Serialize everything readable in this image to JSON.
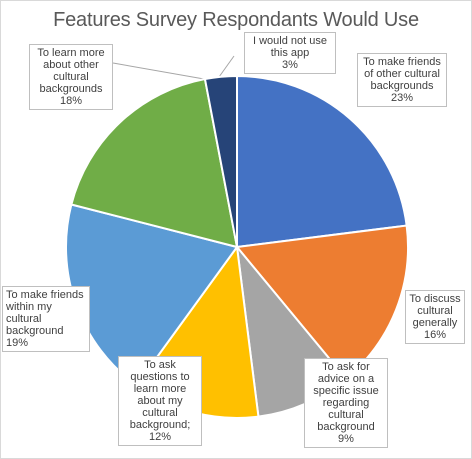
{
  "chart_data": {
    "type": "pie",
    "title": "Features Survey Respondants Would Use",
    "slices": [
      {
        "label": "To make friends of other cultural backgrounds",
        "value": 23,
        "value_label": "23%",
        "color": "#4472C4"
      },
      {
        "label": "To discuss cultural generally",
        "value": 16,
        "value_label": "16%",
        "color": "#ED7D31"
      },
      {
        "label": "To ask for advice on a specific issue regarding cultural background",
        "value": 9,
        "value_label": "9%",
        "color": "#A5A5A5"
      },
      {
        "label": "To ask questions to learn more about my cultural background;",
        "value": 12,
        "value_label": "12%",
        "color": "#FFC000"
      },
      {
        "label": "To make friends within my cultural background",
        "value": 19,
        "value_label": "19%",
        "color": "#5B9BD5"
      },
      {
        "label": "To learn more about other cultural backgrounds",
        "value": 18,
        "value_label": "18%",
        "color": "#70AD47"
      },
      {
        "label": "I would not use this app",
        "value": 3,
        "value_label": "3%",
        "color": "#264478"
      }
    ]
  }
}
